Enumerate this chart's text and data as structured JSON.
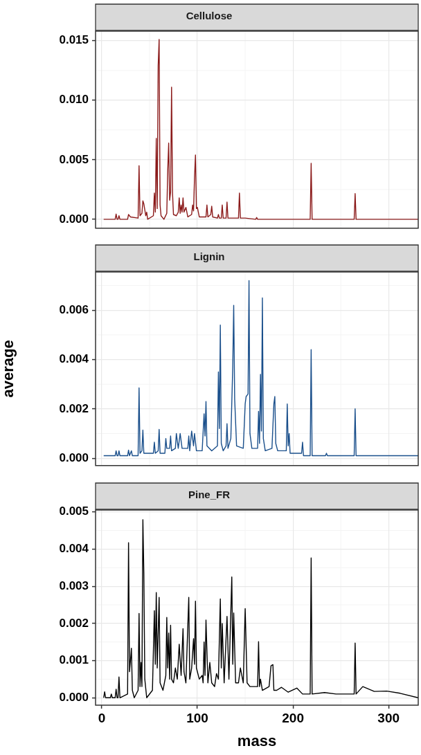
{
  "chart_data": [
    {
      "type": "line",
      "title": "Cellulose",
      "tick_labels": "y",
      "grid": true,
      "xlim": [
        -6.5,
        331
      ],
      "xticks": [
        0,
        100,
        200,
        300
      ],
      "ylim": [
        -0.00075,
        0.0158
      ],
      "yticks": [
        {
          "value": 0,
          "label": "0.000"
        },
        {
          "value": 0.005,
          "label": "0.005"
        },
        {
          "value": 0.01,
          "label": "0.010"
        },
        {
          "value": 0.015,
          "label": "0.015"
        }
      ],
      "x": [
        2,
        14,
        15,
        16,
        17,
        18,
        19,
        27,
        28,
        30,
        38,
        39,
        40,
        42,
        43,
        44,
        46,
        47,
        48,
        54,
        55,
        56,
        57,
        58,
        59,
        60,
        61,
        62,
        65,
        68,
        69,
        70,
        71,
        72,
        73,
        74,
        75,
        78,
        80,
        81,
        82,
        83,
        84,
        85,
        86,
        88,
        90,
        94,
        95,
        96,
        97,
        98,
        99,
        100,
        102,
        109,
        110,
        111,
        114,
        115,
        116,
        121,
        122,
        123,
        125,
        126,
        127,
        130,
        131,
        132,
        143,
        144,
        145,
        150,
        161,
        162,
        163,
        218,
        219,
        220,
        264,
        265,
        266,
        331
      ],
      "series": [
        {
          "color": "#8b1a1a",
          "values": [
            0,
            0,
            0.00044,
            0,
            0,
            0.0003,
            0,
            0,
            0.0004,
            0.0002,
            0.0001,
            0.0045,
            0.0003,
            0.0005,
            0.00155,
            0.0013,
            0.0003,
            0.0006,
            0,
            0.0003,
            0.0022,
            0.0006,
            0.0068,
            0.0009,
            0.0129,
            0.0151,
            0.0012,
            0.0003,
            0,
            0.0005,
            0.0041,
            0.0064,
            0.0016,
            0.0023,
            0.0111,
            0.0022,
            0.0004,
            0.0003,
            0.0006,
            0.0018,
            0.0005,
            0.0012,
            0.0006,
            0.0018,
            0.0006,
            0.001,
            0.0002,
            0.0004,
            0.0012,
            0.0007,
            0.0035,
            0.0054,
            0.0009,
            0.001,
            0.0002,
            0.0002,
            0.0012,
            0.0002,
            0.0004,
            0.0011,
            0.0002,
            0.0001,
            0.0004,
            0.0001,
            0.0001,
            0.0012,
            0.0001,
            0.0001,
            0.00145,
            0.0001,
            0.0001,
            0.0022,
            0.0001,
            0.0001,
            0,
            0.00015,
            0,
            0,
            0.0047,
            0,
            0,
            0.00216,
            0,
            0
          ]
        }
      ]
    },
    {
      "type": "line",
      "title": "Lignin",
      "ylabel": "average",
      "tick_labels": "y",
      "grid": true,
      "xlim": [
        -6.5,
        331
      ],
      "xticks": [
        0,
        100,
        200,
        300
      ],
      "ylim": [
        -0.0003,
        0.00755
      ],
      "yticks": [
        {
          "value": 0,
          "label": "0.000"
        },
        {
          "value": 0.002,
          "label": "0.002"
        },
        {
          "value": 0.004,
          "label": "0.004"
        },
        {
          "value": 0.006,
          "label": "0.006"
        }
      ],
      "x": [
        2,
        14,
        15,
        16,
        17,
        18,
        19,
        27,
        28,
        29,
        31,
        32,
        38,
        39,
        40,
        42,
        43,
        44,
        54,
        55,
        56,
        59,
        60,
        61,
        66,
        67,
        68,
        71,
        72,
        73,
        77,
        78,
        80,
        82,
        84,
        90,
        91,
        92,
        94,
        96,
        97,
        99,
        105,
        107,
        108,
        109,
        110,
        115,
        121,
        122,
        123,
        124,
        125,
        127,
        130,
        131,
        132,
        135,
        137,
        138,
        139,
        141,
        148,
        150,
        151,
        153,
        154,
        155,
        157,
        163,
        164,
        165,
        166,
        167,
        168,
        169,
        171,
        178,
        180,
        181,
        182,
        184,
        193,
        194,
        195,
        196,
        197,
        209,
        210,
        211,
        218,
        219,
        220,
        234,
        235,
        236,
        264,
        265,
        266,
        297,
        298,
        299,
        331
      ],
      "series": [
        {
          "color": "#1a4f8b",
          "values": [
            0.0001,
            0.0001,
            0.0003,
            0.0001,
            0.0001,
            0.0003,
            0.0001,
            0.0001,
            0.00033,
            0.0001,
            0.0003,
            0.0001,
            0.0001,
            0.00285,
            0.0002,
            0.0003,
            0.00114,
            0.0002,
            0.0002,
            0.00065,
            0.0002,
            0.0003,
            0.00117,
            0.0002,
            0.0002,
            0.0008,
            0.0004,
            0.0004,
            0.0009,
            0.0003,
            0.0004,
            0.001,
            0.0004,
            0.001,
            0.0004,
            0.0004,
            0.0009,
            0.0003,
            0.0011,
            0.0005,
            0.001,
            0.0003,
            0.0003,
            0.0018,
            0.0009,
            0.0023,
            0.0005,
            0.0003,
            0.0005,
            0.0035,
            0.0012,
            0.0054,
            0.0006,
            0.0003,
            0.0005,
            0.0014,
            0.0004,
            0.0008,
            0.0037,
            0.0062,
            0.0024,
            0.0005,
            0.0004,
            0.0022,
            0.0025,
            0.0026,
            0.0072,
            0.001,
            0.0004,
            0.0004,
            0.0019,
            0.0006,
            0.0034,
            0.0011,
            0.0065,
            0.0008,
            0.0003,
            0.0004,
            0.0022,
            0.0025,
            0.0006,
            0.0003,
            0.0003,
            0.0022,
            0.0005,
            0.001,
            0.0002,
            0.0002,
            0.00065,
            0.0001,
            0.0001,
            0.0044,
            0.0001,
            0.0001,
            0.0002,
            0.0001,
            0.0001,
            0.002,
            0.0001,
            0.0001,
            0.0001,
            0.0001,
            0.0001
          ]
        }
      ]
    },
    {
      "type": "line",
      "title": "Pine_FR",
      "xlabel": "mass",
      "grid": true,
      "xlim": [
        -6.5,
        331
      ],
      "xticks": [
        0,
        100,
        200,
        300
      ],
      "ylim": [
        -0.0002,
        0.00505
      ],
      "yticks": [
        {
          "value": 0,
          "label": "0.000"
        },
        {
          "value": 0.001,
          "label": "0.001"
        },
        {
          "value": 0.002,
          "label": "0.002"
        },
        {
          "value": 0.003,
          "label": "0.003"
        },
        {
          "value": 0.004,
          "label": "0.004"
        },
        {
          "value": 0.005,
          "label": "0.005"
        }
      ],
      "x": [
        2,
        3,
        4,
        9,
        10,
        11,
        14,
        15,
        16,
        17,
        18,
        19,
        27,
        28,
        29,
        30,
        31,
        32,
        34,
        38,
        39,
        40,
        41,
        42,
        43,
        44,
        45,
        47,
        53,
        55,
        56,
        57,
        58,
        60,
        61,
        64,
        67,
        68,
        69,
        70,
        71,
        72,
        73,
        75,
        77,
        79,
        81,
        83,
        85,
        86,
        88,
        91,
        92,
        94,
        96,
        97,
        98,
        99,
        102,
        105,
        106,
        107,
        108,
        109,
        111,
        113,
        115,
        118,
        120,
        122,
        124,
        125,
        126,
        128,
        131,
        133,
        136,
        137,
        138,
        140,
        143,
        145,
        148,
        150,
        152,
        155,
        163,
        164,
        165,
        166,
        168,
        175,
        177,
        179,
        180,
        183,
        188,
        195,
        204,
        210,
        218,
        219,
        220,
        233,
        245,
        264,
        265,
        266,
        273,
        285,
        298,
        312,
        331
      ],
      "series": [
        {
          "color": "#000000",
          "values": [
            0,
            0.00016,
            0,
            0,
            0.0001,
            0,
            0,
            0.00023,
            0,
            0,
            0.00056,
            0,
            0.0001,
            0.00417,
            0.0007,
            0.001,
            0.00133,
            0.0002,
            0,
            0.0002,
            0.00227,
            0.0003,
            0.00095,
            0.0003,
            0.00479,
            0.00336,
            0.0005,
            0,
            0.0002,
            0.00234,
            0.0009,
            0.00283,
            0.0008,
            0.0027,
            0.0004,
            0.0002,
            0.0006,
            0.00216,
            0.0008,
            0.00174,
            0.0005,
            0.00195,
            0.0005,
            0.0004,
            0.0008,
            0.0005,
            0.00144,
            0.0006,
            0.00186,
            0.0007,
            0.0004,
            0.0027,
            0.0005,
            0.0008,
            0.00159,
            0.0009,
            0.0026,
            0.0008,
            0.0005,
            0.0006,
            0.0004,
            0.0015,
            0.0006,
            0.00209,
            0.0004,
            0.00095,
            0.0004,
            0.0003,
            0.00065,
            0.0005,
            0.00266,
            0.0008,
            0.002,
            0.0004,
            0.00219,
            0.0005,
            0.00325,
            0.0009,
            0.00228,
            0.0004,
            0.0004,
            0.0008,
            0.0004,
            0.0024,
            0.0004,
            0.0003,
            0.0003,
            0.00151,
            0.0003,
            0.0005,
            0.0002,
            0.0003,
            0.00086,
            0.00089,
            0.0002,
            0.0002,
            0.00028,
            0.00015,
            0.00026,
            0.0001,
            0.0001,
            0.00376,
            0.0001,
            0.00014,
            0.0001,
            0.0001,
            0.00147,
            0.0001,
            0.0003,
            0.00017,
            0.00018,
            0.00012,
            0
          ]
        }
      ]
    }
  ]
}
